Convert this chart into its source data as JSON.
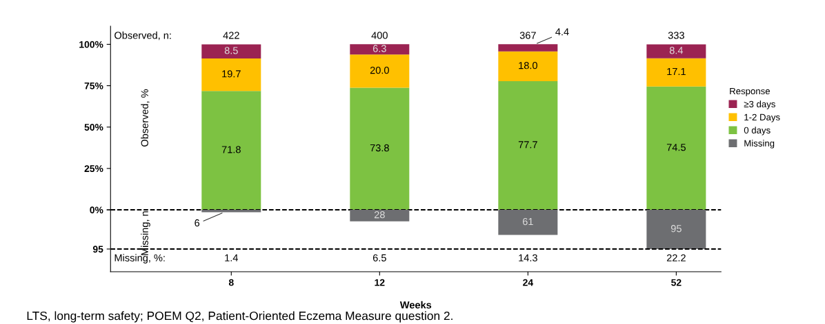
{
  "chart_data": [
    {
      "type": "bar",
      "stacked": true,
      "categories": [
        "8",
        "12",
        "24",
        "52"
      ],
      "series": [
        {
          "name": "0 days",
          "color": "#7dc242",
          "values": [
            71.8,
            73.8,
            77.7,
            74.5
          ],
          "value_labels": [
            "71.8",
            "73.8",
            "77.7",
            "74.5"
          ]
        },
        {
          "name": "1-2 Days",
          "color": "#ffc000",
          "values": [
            19.7,
            20.0,
            18.0,
            17.1
          ],
          "value_labels": [
            "19.7",
            "20.0",
            "18.0",
            "17.1"
          ]
        },
        {
          "name": "≥3 days",
          "color": "#9b2352",
          "values": [
            8.5,
            6.3,
            4.4,
            8.4
          ],
          "value_labels": [
            "8.5",
            "6.3",
            "4.4",
            "8.4"
          ]
        }
      ],
      "ylabel": "Observed, %",
      "ylim": [
        0,
        111
      ],
      "yticks": [
        {
          "value": 0,
          "label": null
        },
        {
          "value": 25,
          "label": "25%"
        },
        {
          "value": 50,
          "label": "50%"
        },
        {
          "value": 75,
          "label": "75%"
        },
        {
          "value": 100,
          "label": "100%"
        }
      ],
      "tick_labels": "y",
      "legend": "right",
      "legend_title": "Response",
      "ref_lines": [
        {
          "axis": "y",
          "value": 0,
          "color": "#000000",
          "line_style": "dashed"
        }
      ],
      "annotations": [
        "Observed, n:",
        "422",
        "400",
        "367",
        "333"
      ]
    },
    {
      "type": "bar",
      "categories": [
        "8",
        "12",
        "24",
        "52"
      ],
      "series": [
        {
          "name": "Missing",
          "color": "#6d6e71",
          "values": [
            6,
            28,
            61,
            95
          ]
        }
      ],
      "ylabel": "Missing, n",
      "xlabel": "Weeks",
      "ylim": [
        150,
        0
      ],
      "yticks": [
        {
          "value": 0,
          "label": "0%"
        },
        95
      ],
      "data_labels": true,
      "ref_lines": [
        {
          "axis": "y",
          "value": 95,
          "color": "#000000",
          "line_style": "dashed"
        }
      ],
      "annotations": [
        "Missing, %:",
        "1.4",
        "6.5",
        "14.3",
        "22.2",
        "LTS, long-term safety; POEM Q2, Patient-Oriented Eczema Measure question 2."
      ]
    }
  ]
}
